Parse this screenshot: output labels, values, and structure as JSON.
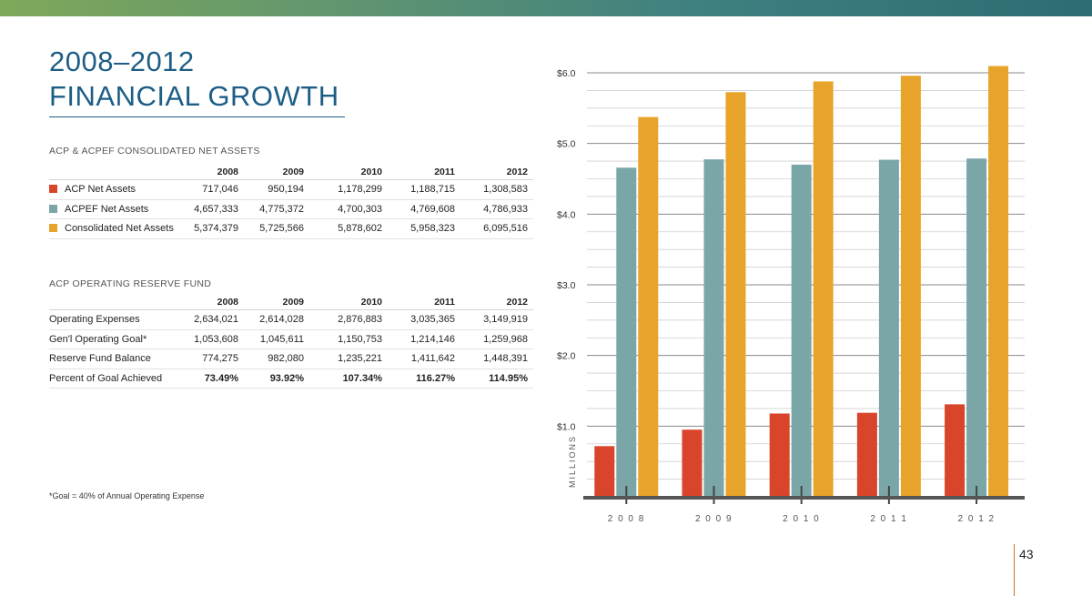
{
  "page": {
    "title_line1": "2008–2012",
    "title_line2": "FINANCIAL GROWTH",
    "page_number": "43",
    "footnote": "*Goal = 40% of Annual Operating Expense"
  },
  "colors": {
    "acp": "#d8452a",
    "acpef": "#7aa6a8",
    "consolidated": "#e8a42a",
    "title_blue": "#1d5e86"
  },
  "net_assets": {
    "heading": "ACP & ACPEF CONSOLIDATED NET ASSETS",
    "years": [
      "2008",
      "2009",
      "2010",
      "2011",
      "2012"
    ],
    "rows": [
      {
        "label": "ACP Net Assets",
        "swatch": "acp",
        "values": [
          "717,046",
          "950,194",
          "1,178,299",
          "1,188,715",
          "1,308,583"
        ]
      },
      {
        "label": "ACPEF Net Assets",
        "swatch": "acpef",
        "values": [
          "4,657,333",
          "4,775,372",
          "4,700,303",
          "4,769,608",
          "4,786,933"
        ]
      },
      {
        "label": "Consolidated Net Assets",
        "swatch": "consolidated",
        "values": [
          "5,374,379",
          "5,725,566",
          "5,878,602",
          "5,958,323",
          "6,095,516"
        ]
      }
    ]
  },
  "reserve_fund": {
    "heading": "ACP OPERATING RESERVE FUND",
    "years": [
      "2008",
      "2009",
      "2010",
      "2011",
      "2012"
    ],
    "rows": [
      {
        "label": "Operating Expenses",
        "values": [
          "2,634,021",
          "2,614,028",
          "2,876,883",
          "3,035,365",
          "3,149,919"
        ]
      },
      {
        "label": "Gen'l Operating Goal*",
        "values": [
          "1,053,608",
          "1,045,611",
          "1,150,753",
          "1,214,146",
          "1,259,968"
        ]
      },
      {
        "label": "Reserve Fund Balance",
        "values": [
          "774,275",
          "982,080",
          "1,235,221",
          "1,411,642",
          "1,448,391"
        ]
      },
      {
        "label": "Percent of Goal Achieved",
        "values": [
          "73.49%",
          "93.92%",
          "107.34%",
          "116.27%",
          "114.95%"
        ]
      }
    ]
  },
  "chart_data": {
    "type": "bar",
    "categories": [
      "2 0 0 8",
      "2 0 0 9",
      "2 0 1 0",
      "2 0 1 1",
      "2 0 1 2"
    ],
    "series": [
      {
        "name": "ACP Net Assets",
        "color_key": "acp",
        "values": [
          0.717046,
          0.950194,
          1.178299,
          1.188715,
          1.308583
        ]
      },
      {
        "name": "ACPEF Net Assets",
        "color_key": "acpef",
        "values": [
          4.657333,
          4.775372,
          4.700303,
          4.769608,
          4.786933
        ]
      },
      {
        "name": "Consolidated Net Assets",
        "color_key": "consolidated",
        "values": [
          5.374379,
          5.725566,
          5.878602,
          5.958323,
          6.095516
        ]
      }
    ],
    "y_ticks": [
      {
        "value": 1,
        "label": "$1.0"
      },
      {
        "value": 2,
        "label": "$2.0"
      },
      {
        "value": 3,
        "label": "$3.0"
      },
      {
        "value": 4,
        "label": "$4.0"
      },
      {
        "value": 5,
        "label": "$5.0"
      },
      {
        "value": 6,
        "label": "$6.0"
      }
    ],
    "ylabel": "MILLIONS",
    "ylim": [
      0,
      6.0
    ],
    "minor_grid_step": 0.25,
    "grid": true
  }
}
